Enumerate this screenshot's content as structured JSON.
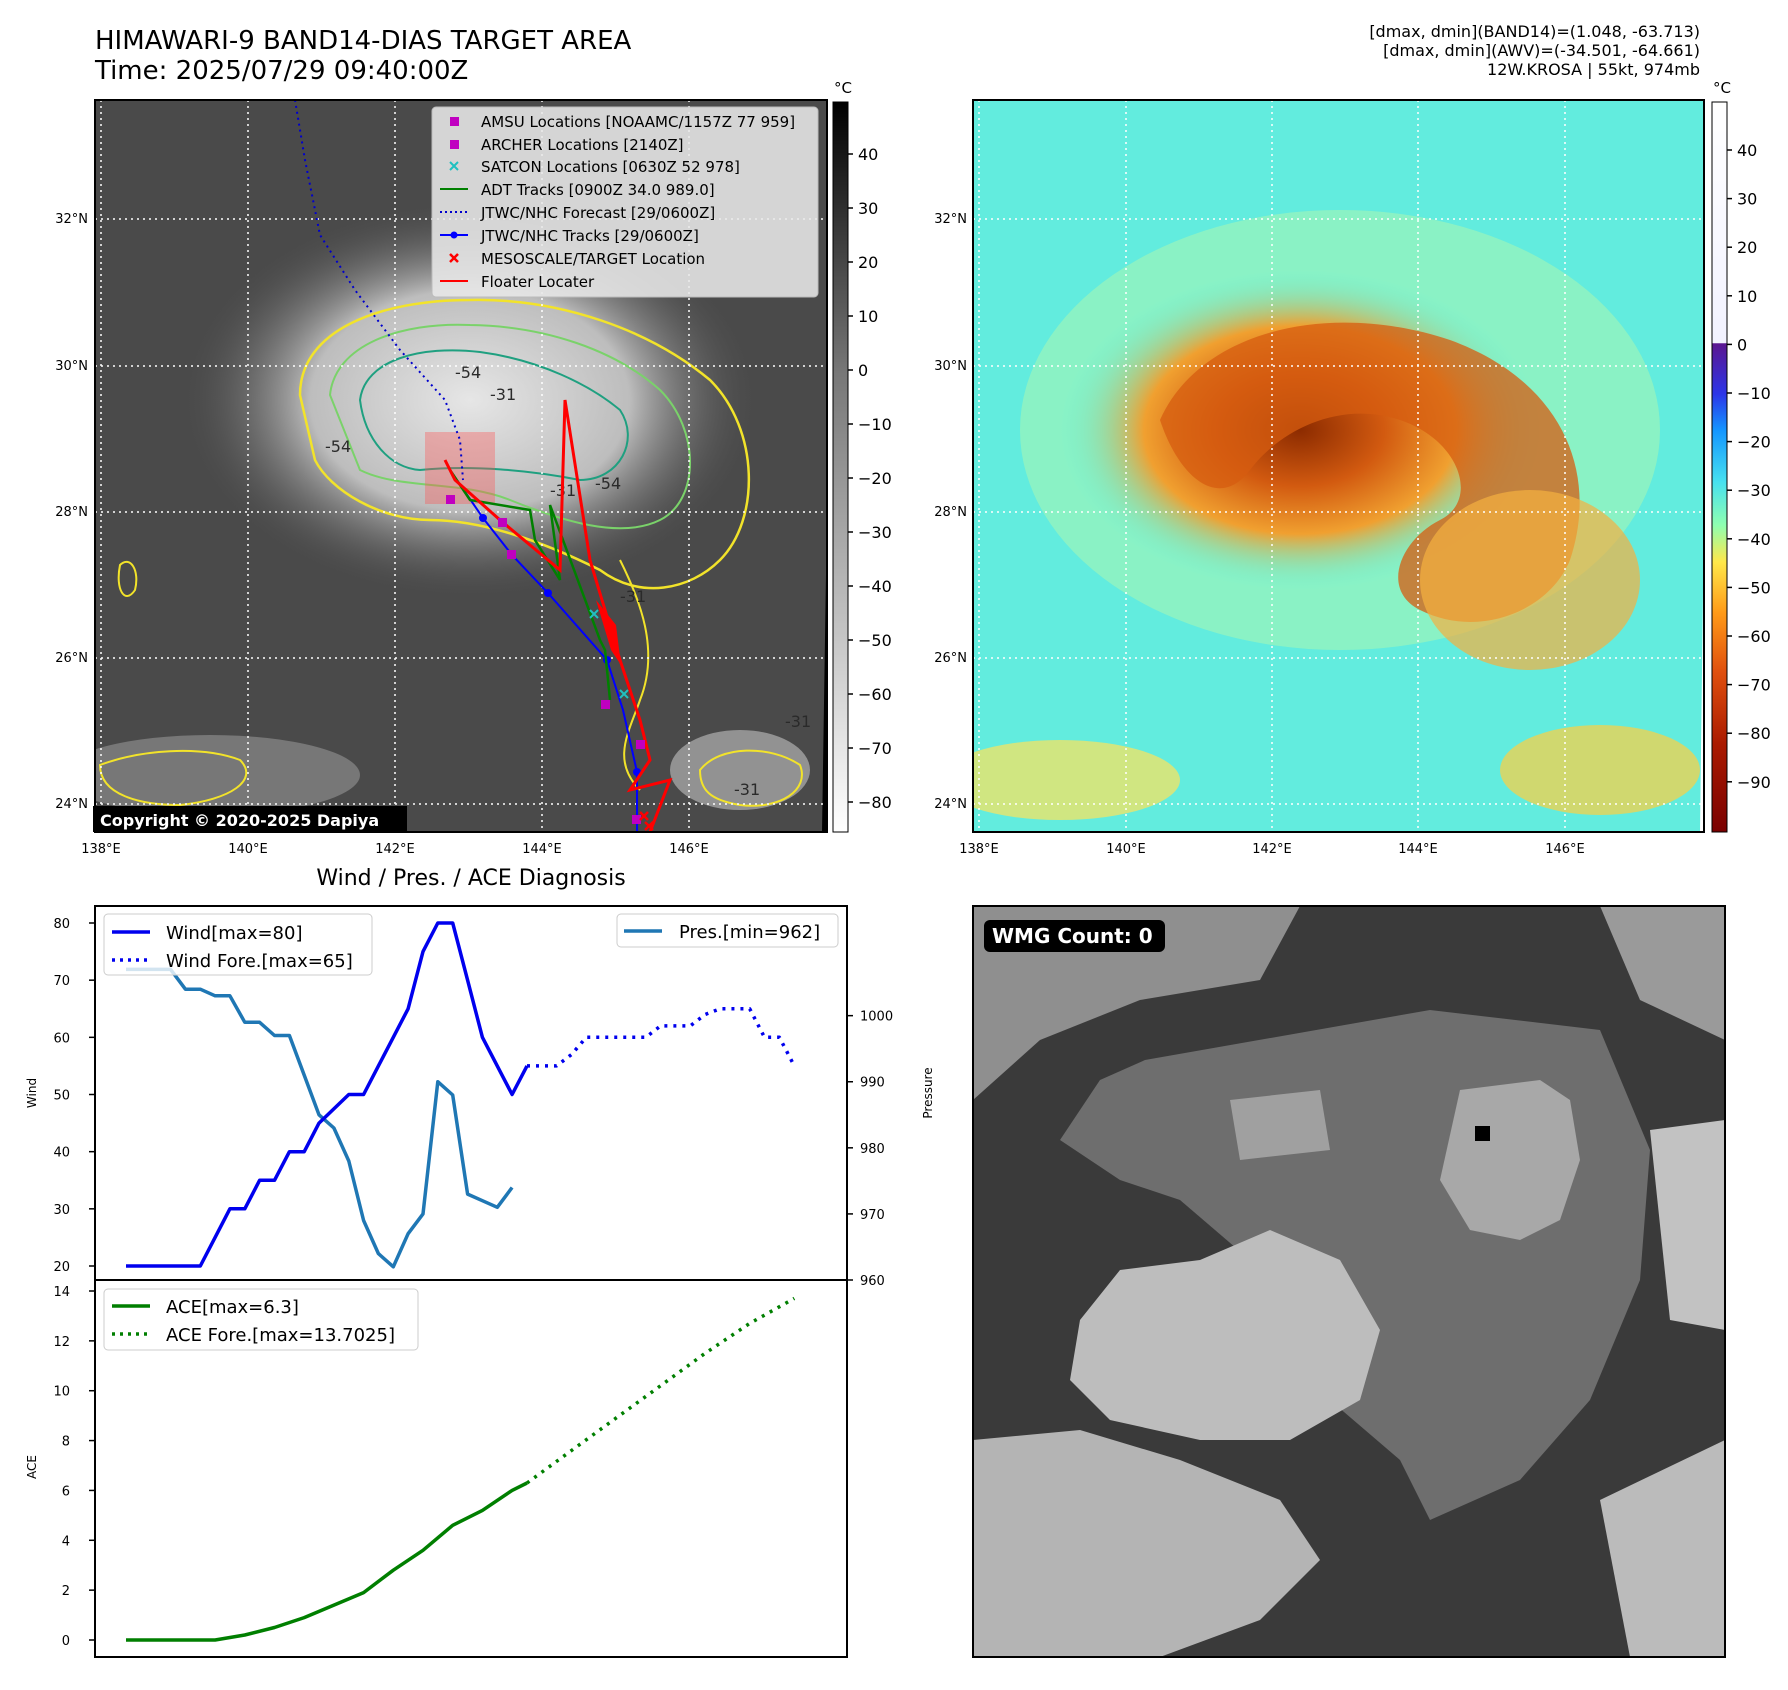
{
  "header": {
    "title_line1": "HIMAWARI-9 BAND14-DIAS TARGET AREA",
    "title_line2": "Time: 2025/07/29 09:40:00Z",
    "info_line1": "[dmax, dmin](BAND14)=(1.048, -63.713)",
    "info_line2": "[dmax, dmin](AWV)=(-34.501, -64.661)",
    "info_line3": "12W.KROSA | 55kt, 974mb"
  },
  "map": {
    "lon_ticks": [
      "138°E",
      "140°E",
      "142°E",
      "144°E",
      "146°E"
    ],
    "lat_ticks": [
      "32°N",
      "30°N",
      "28°N",
      "26°N",
      "24°N"
    ],
    "copyright": "Copyright © 2020-2025 Dapiya",
    "contour_labels": [
      "-54",
      "-31",
      "-54",
      "-31",
      "-54",
      "-31",
      "-31",
      "-31"
    ],
    "colors": {
      "track": "#0000ff",
      "forecast": "#0000cc",
      "adt": "#008000",
      "floater": "#ff0000",
      "amsu": "#c000c0",
      "satcon": "#20c0c0"
    }
  },
  "legend_map": [
    {
      "label": "AMSU Locations [NOAAMC/1157Z 77 959]",
      "marker": "square",
      "color": "#c000c0"
    },
    {
      "label": "ARCHER Locations [2140Z]",
      "marker": "square",
      "color": "#c000c0"
    },
    {
      "label": "SATCON Locations [0630Z 52 978]",
      "marker": "x",
      "color": "#20c0c0"
    },
    {
      "label": "ADT Tracks [0900Z 34.0 989.0]",
      "marker": "line",
      "color": "#008000"
    },
    {
      "label": "JTWC/NHC Forecast [29/0600Z]",
      "marker": "dotted",
      "color": "#0000cc"
    },
    {
      "label": "JTWC/NHC Tracks [29/0600Z]",
      "marker": "line-dot",
      "color": "#0000ff"
    },
    {
      "label": "MESOSCALE/TARGET Location",
      "marker": "x",
      "color": "#ff0000"
    },
    {
      "label": "Floater Locater",
      "marker": "line",
      "color": "#ff0000"
    }
  ],
  "colorbar_gray": {
    "unit": "°C",
    "ticks": [
      "40",
      "30",
      "20",
      "10",
      "0",
      "−10",
      "−20",
      "−30",
      "−40",
      "−50",
      "−60",
      "−70",
      "−80"
    ]
  },
  "colorbar_color": {
    "unit": "°C",
    "ticks": [
      "40",
      "30",
      "20",
      "10",
      "0",
      "−10",
      "−20",
      "−30",
      "−40",
      "−50",
      "−60",
      "−70",
      "−80",
      "−90"
    ]
  },
  "diag_title": "Wind / Pres. / ACE Diagnosis",
  "wmg_label": "WMG Count: 0",
  "chart_data": [
    {
      "type": "line",
      "title": "Wind / Pres. / ACE Diagnosis",
      "ylabel": "Wind",
      "ylabel_right": "Pressure",
      "ylim": [
        18,
        82
      ],
      "ylim_right": [
        960,
        1008
      ],
      "yticks": [
        "80",
        "70",
        "60",
        "50",
        "40",
        "30",
        "20"
      ],
      "yticks_right": [
        "1000",
        "990",
        "980",
        "970",
        "960"
      ],
      "series": [
        {
          "name": "Wind[max=80]",
          "axis": "left",
          "style": "solid",
          "color": "#0000ee",
          "x": [
            0,
            3,
            5,
            6,
            7,
            8,
            9,
            10,
            11,
            12,
            13,
            15,
            16,
            17,
            18,
            19,
            20,
            21,
            22,
            23,
            24,
            26,
            27
          ],
          "values": [
            20,
            20,
            20,
            25,
            30,
            30,
            35,
            35,
            40,
            40,
            45,
            50,
            50,
            55,
            60,
            65,
            75,
            80,
            80,
            70,
            60,
            50,
            55
          ]
        },
        {
          "name": "Wind Fore.[max=65]",
          "axis": "left",
          "style": "dotted",
          "color": "#0000ee",
          "x": [
            27,
            29,
            30,
            31,
            32,
            33,
            34,
            35,
            36,
            37,
            38,
            39,
            40,
            41,
            42,
            43,
            44,
            45
          ],
          "values": [
            55,
            55,
            57,
            60,
            60,
            60,
            60,
            60,
            62,
            62,
            62,
            64,
            65,
            65,
            65,
            60,
            60,
            55
          ]
        },
        {
          "name": "Pres.[min=962]",
          "axis": "right",
          "style": "solid",
          "color": "#1f77b4",
          "x": [
            0,
            3,
            4,
            5,
            6,
            7,
            8,
            9,
            10,
            11,
            12,
            13,
            14,
            15,
            16,
            17,
            18,
            19,
            20,
            21,
            22,
            23,
            24,
            25,
            26
          ],
          "values": [
            1007,
            1007,
            1004,
            1004,
            1003,
            1003,
            999,
            999,
            997,
            997,
            991,
            985,
            983,
            978,
            969,
            964,
            962,
            967,
            970,
            990,
            988,
            973,
            972,
            971,
            974
          ]
        }
      ]
    },
    {
      "type": "line",
      "ylabel": "ACE",
      "ylim": [
        -0.5,
        14.6
      ],
      "yticks": [
        "14",
        "12",
        "10",
        "8",
        "6",
        "4",
        "2",
        "0"
      ],
      "series": [
        {
          "name": "ACE[max=6.3]",
          "style": "solid",
          "color": "#007f00",
          "x": [
            0,
            3,
            6,
            8,
            10,
            12,
            14,
            16,
            18,
            20,
            22,
            24,
            26,
            27
          ],
          "values": [
            0,
            0,
            0,
            0.2,
            0.5,
            0.9,
            1.4,
            1.9,
            2.8,
            3.6,
            4.6,
            5.2,
            6.0,
            6.3
          ]
        },
        {
          "name": "ACE Fore.[max=13.7025]",
          "style": "dotted",
          "color": "#007f00",
          "x": [
            27,
            30,
            33,
            36,
            39,
            42,
            45
          ],
          "values": [
            6.3,
            7.6,
            8.9,
            10.2,
            11.5,
            12.7,
            13.7025
          ]
        }
      ]
    }
  ]
}
